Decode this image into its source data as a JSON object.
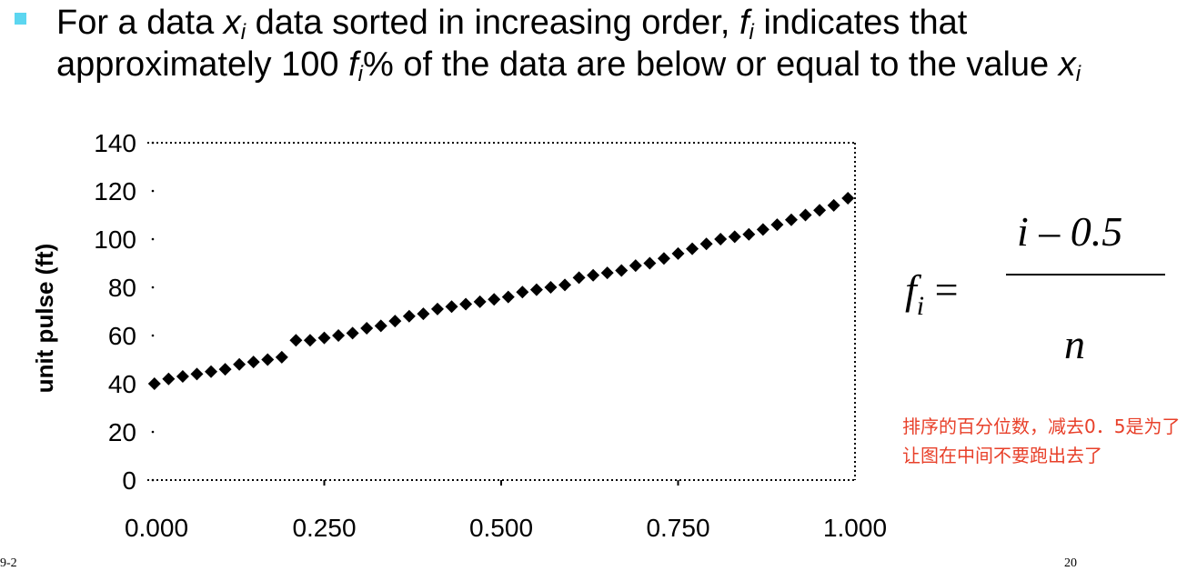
{
  "slide": {
    "bullet_color": "#5cd6f0",
    "text": {
      "p1": "For a data ",
      "x": "x",
      "i": "i",
      "p2": " data sorted in increasing order, ",
      "f": "f",
      "p3": " indicates that approximately 100 ",
      "p4": "% of the data are below or equal to the value ",
      "i3": "i"
    },
    "formula": {
      "lhs_f": "f",
      "lhs_i": "i",
      "equals": "=",
      "numerator": "i – 0.5",
      "denominator": "n"
    },
    "note": "排序的百分位数，减去0．5是为了让图在中间不要跑出去了",
    "note_color": "#e8402a",
    "footer_left": "9-2",
    "footer_right": "20"
  },
  "chart_data": {
    "type": "scatter",
    "xlabel": "",
    "ylabel": "unit pulse (ft)",
    "x_ticks": [
      "0.000",
      "0.250",
      "0.500",
      "0.750",
      "1.000"
    ],
    "y_ticks": [
      "0",
      "20",
      "40",
      "60",
      "80",
      "100",
      "120",
      "140"
    ],
    "xlim": [
      0,
      1
    ],
    "ylim": [
      0,
      140
    ],
    "grid": false,
    "marker": "diamond",
    "x": [
      0.01,
      0.03,
      0.05,
      0.07,
      0.09,
      0.11,
      0.13,
      0.15,
      0.17,
      0.19,
      0.21,
      0.23,
      0.25,
      0.27,
      0.29,
      0.31,
      0.33,
      0.35,
      0.37,
      0.39,
      0.41,
      0.43,
      0.45,
      0.47,
      0.49,
      0.51,
      0.53,
      0.55,
      0.57,
      0.59,
      0.61,
      0.63,
      0.65,
      0.67,
      0.69,
      0.71,
      0.73,
      0.75,
      0.77,
      0.79,
      0.81,
      0.83,
      0.85,
      0.87,
      0.89,
      0.91,
      0.93,
      0.95,
      0.97,
      0.99
    ],
    "y": [
      40,
      42,
      43,
      44,
      45,
      46,
      48,
      49,
      50,
      51,
      58,
      58,
      59,
      60,
      61,
      63,
      64,
      66,
      68,
      69,
      71,
      72,
      73,
      74,
      75,
      76,
      78,
      79,
      80,
      81,
      84,
      85,
      86,
      87,
      89,
      90,
      92,
      94,
      96,
      98,
      100,
      101,
      102,
      104,
      106,
      108,
      110,
      112,
      114,
      117
    ]
  }
}
